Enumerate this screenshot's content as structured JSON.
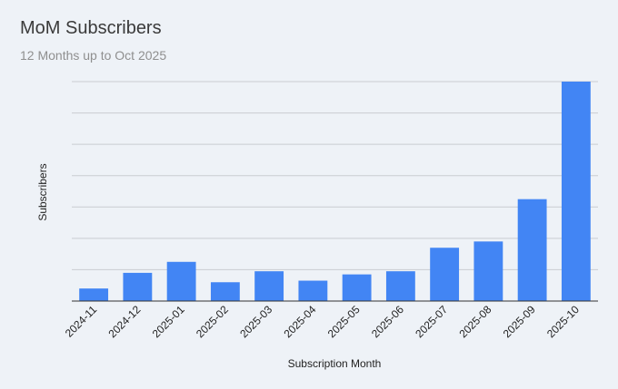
{
  "chart_data": {
    "type": "bar",
    "title": "MoM Subscribers",
    "subtitle": "12 Months up to Oct 2025",
    "xlabel": "Subscription Month",
    "ylabel": "Subscribers",
    "categories": [
      "2024-11",
      "2024-12",
      "2025-01",
      "2025-02",
      "2025-03",
      "2025-04",
      "2025-05",
      "2025-06",
      "2025-07",
      "2025-08",
      "2025-09",
      "2025-10"
    ],
    "values": [
      0.4,
      0.9,
      1.25,
      0.6,
      0.95,
      0.65,
      0.85,
      0.95,
      1.7,
      1.9,
      3.25,
      7.0
    ],
    "ylim": [
      0,
      7
    ],
    "y_gridlines": 7,
    "grid": true,
    "y_tick_labels_visible": false,
    "bar_color": "#4285f4"
  }
}
